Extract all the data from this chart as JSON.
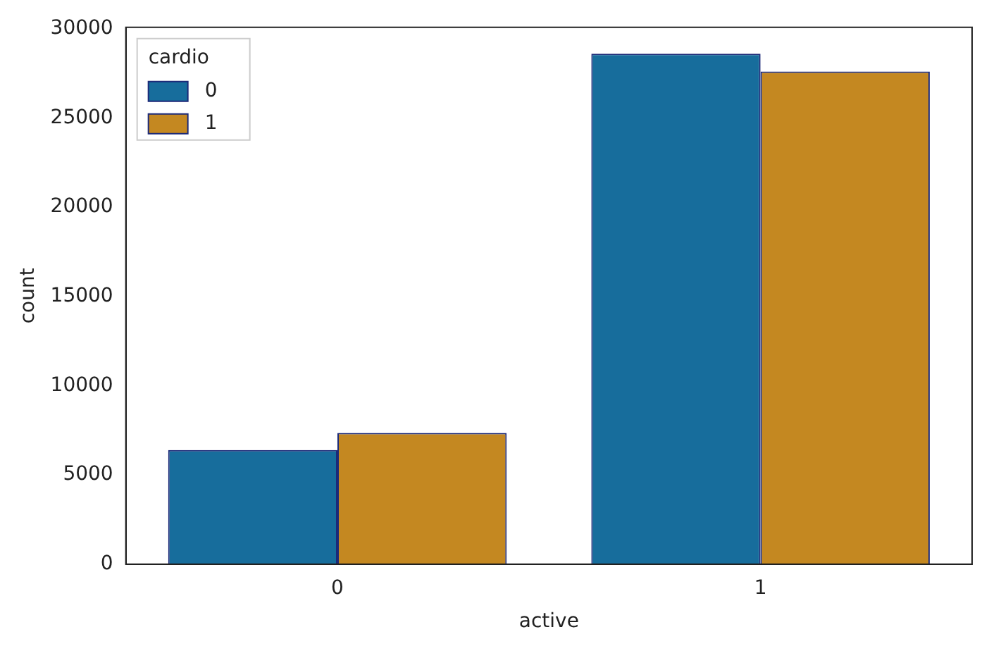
{
  "chart_data": {
    "type": "bar",
    "xlabel": "active",
    "ylabel": "count",
    "legend_title": "cardio",
    "categories": [
      "0",
      "1"
    ],
    "series": [
      {
        "name": "0",
        "color": "#176d9c",
        "values": [
          6400,
          28600
        ]
      },
      {
        "name": "1",
        "color": "#c48821",
        "values": [
          7350,
          27600
        ]
      }
    ],
    "ylim": [
      0,
      30075
    ],
    "yticks": [
      0,
      5000,
      10000,
      15000,
      20000,
      25000,
      30000
    ],
    "grid": false,
    "legend": "top left"
  }
}
